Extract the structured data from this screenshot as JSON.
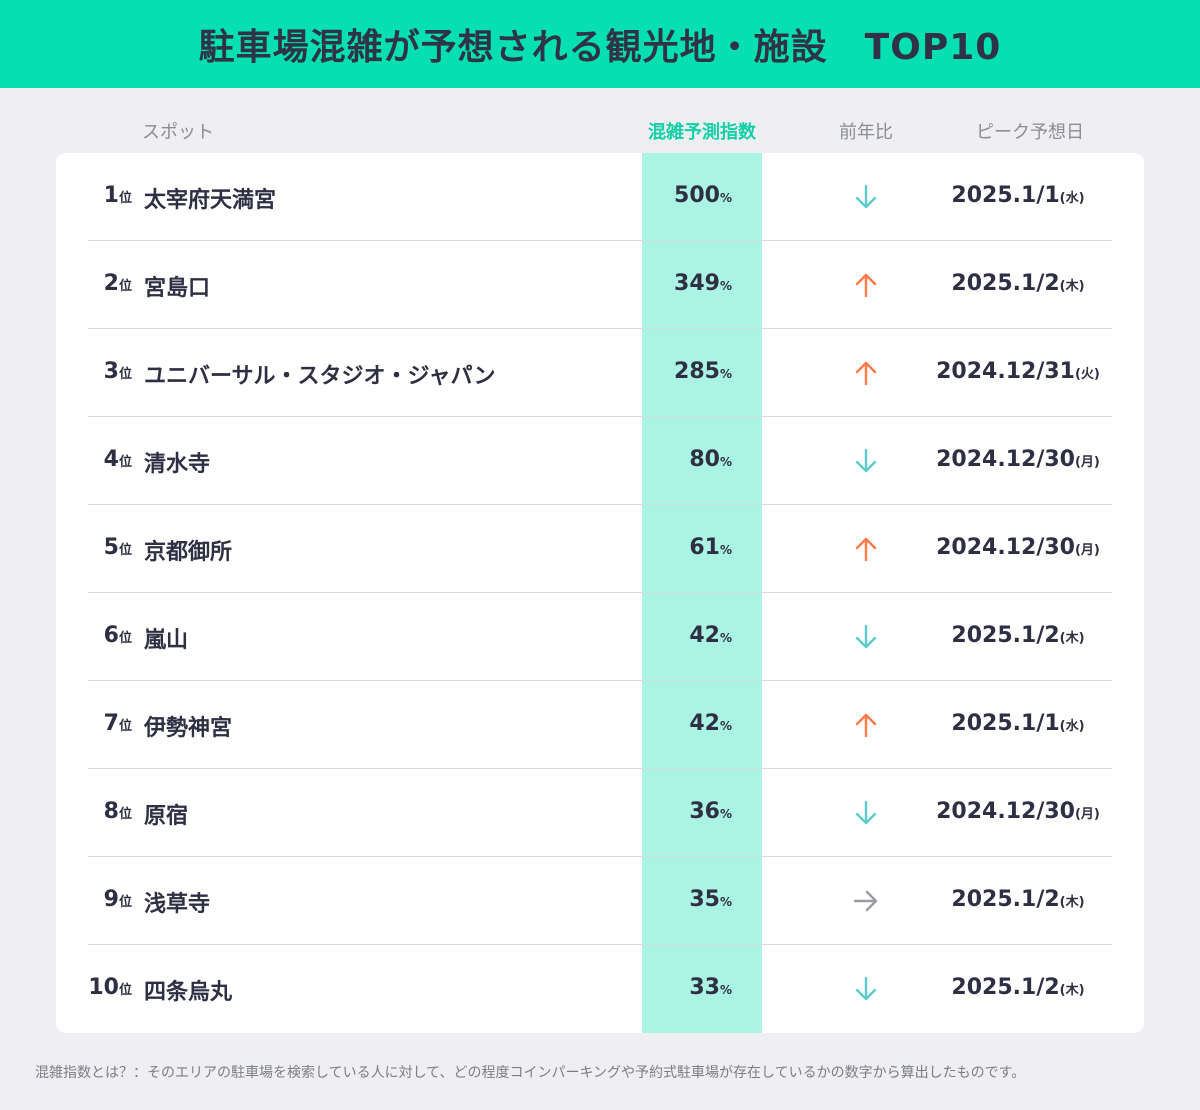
{
  "title": "駐車場混雑が予想される観光地・施設　TOP10",
  "headers": {
    "spot": "スポット",
    "index": "混雑予測指数",
    "yoy": "前年比",
    "peak": "ピーク予想日"
  },
  "rank_unit": "位",
  "percent_unit": "%",
  "colors": {
    "banner": "#05dfb2",
    "index_column": "#abf3e3",
    "index_header": "#11cfa6",
    "arrow_up": "#ff7a45",
    "arrow_down": "#5ccccc",
    "arrow_flat": "#9a9aa5"
  },
  "chart_data": {
    "type": "table",
    "columns": [
      "スポット",
      "混雑予測指数",
      "前年比",
      "ピーク予想日"
    ],
    "rows": [
      {
        "rank": "1",
        "spot": "太宰府天満宮",
        "index": "500",
        "yoy": "down",
        "date": "2025.1/1",
        "weekday": "(水)"
      },
      {
        "rank": "2",
        "spot": "宮島口",
        "index": "349",
        "yoy": "up",
        "date": "2025.1/2",
        "weekday": "(木)"
      },
      {
        "rank": "3",
        "spot": "ユニバーサル・スタジオ・ジャパン",
        "index": "285",
        "yoy": "up",
        "date": "2024.12/31",
        "weekday": "(火)"
      },
      {
        "rank": "4",
        "spot": "清水寺",
        "index": "80",
        "yoy": "down",
        "date": "2024.12/30",
        "weekday": "(月)"
      },
      {
        "rank": "5",
        "spot": "京都御所",
        "index": "61",
        "yoy": "up",
        "date": "2024.12/30",
        "weekday": "(月)"
      },
      {
        "rank": "6",
        "spot": "嵐山",
        "index": "42",
        "yoy": "down",
        "date": "2025.1/2",
        "weekday": "(木)"
      },
      {
        "rank": "7",
        "spot": "伊勢神宮",
        "index": "42",
        "yoy": "up",
        "date": "2025.1/1",
        "weekday": "(水)"
      },
      {
        "rank": "8",
        "spot": "原宿",
        "index": "36",
        "yoy": "down",
        "date": "2024.12/30",
        "weekday": "(月)"
      },
      {
        "rank": "9",
        "spot": "浅草寺",
        "index": "35",
        "yoy": "flat",
        "date": "2025.1/2",
        "weekday": "(木)"
      },
      {
        "rank": "10",
        "spot": "四条烏丸",
        "index": "33",
        "yoy": "down",
        "date": "2025.1/2",
        "weekday": "(木)"
      }
    ]
  },
  "footnote": "混雑指数とは？：そのエリアの駐車場を検索している人に対して、どの程度コインパーキングや予約式駐車場が存在しているかの数字から算出したものです。"
}
